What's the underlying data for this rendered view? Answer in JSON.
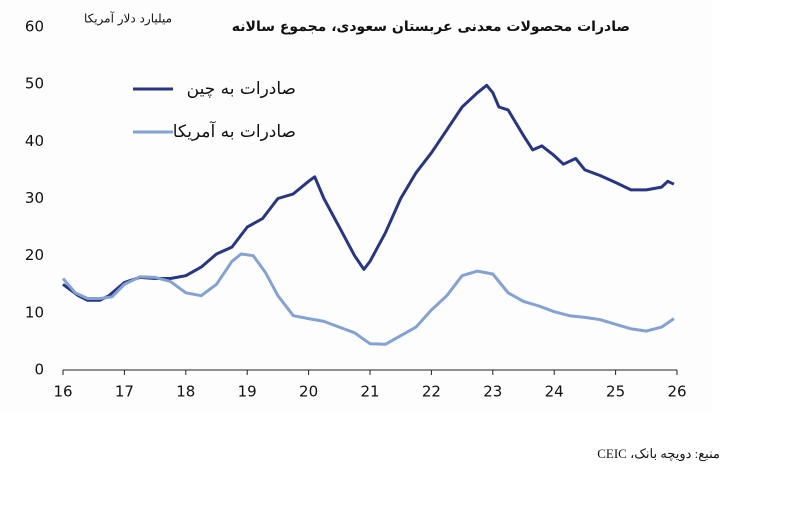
{
  "chart_data": {
    "type": "line",
    "title": "صادرات محصولات معدنی عربستان سعودی، مجموع سالانه",
    "y_label": "میلیارد دلار آمریکا",
    "source": "منبع: دویچه بانک، CEIC",
    "xlim": [
      16,
      26
    ],
    "xticks": [
      16,
      17,
      18,
      19,
      20,
      21,
      22,
      23,
      24,
      25,
      26
    ],
    "ylim": [
      0,
      60
    ],
    "yticks": [
      0,
      10,
      20,
      30,
      40,
      50,
      60
    ],
    "grid": false,
    "series": [
      {
        "name": "صادرات به چین",
        "color": "#263585",
        "x": [
          16.0,
          16.25,
          16.4,
          16.6,
          16.75,
          17.0,
          17.25,
          17.5,
          17.75,
          18.0,
          18.25,
          18.5,
          18.75,
          19.0,
          19.25,
          19.5,
          19.75,
          20.0,
          20.1,
          20.25,
          20.5,
          20.75,
          20.9,
          21.0,
          21.25,
          21.5,
          21.75,
          22.0,
          22.25,
          22.5,
          22.75,
          22.9,
          23.0,
          23.1,
          23.25,
          23.5,
          23.65,
          23.8,
          24.0,
          24.15,
          24.35,
          24.5,
          24.75,
          25.0,
          25.25,
          25.5,
          25.75,
          25.85,
          25.95
        ],
        "values": [
          15,
          13,
          12.2,
          12.2,
          13,
          15.3,
          16.2,
          16,
          16,
          16.5,
          18,
          20.3,
          21.5,
          25,
          26.5,
          30,
          30.8,
          33,
          33.8,
          30,
          25,
          20,
          17.6,
          19,
          24,
          30,
          34.5,
          38,
          42,
          46,
          48.5,
          49.8,
          48.5,
          46,
          45.5,
          41,
          38.5,
          39.2,
          37.5,
          36,
          37,
          35,
          34,
          32.8,
          31.5,
          31.5,
          32,
          33,
          32.5
        ]
      },
      {
        "name": "صادرات به آمریکا",
        "color": "#82a2d6",
        "x": [
          16.0,
          16.2,
          16.4,
          16.6,
          16.8,
          17.0,
          17.25,
          17.5,
          17.75,
          18.0,
          18.25,
          18.5,
          18.75,
          18.9,
          19.1,
          19.3,
          19.5,
          19.75,
          20.0,
          20.25,
          20.5,
          20.75,
          21.0,
          21.25,
          21.5,
          21.75,
          22.0,
          22.25,
          22.5,
          22.75,
          23.0,
          23.25,
          23.5,
          23.75,
          24.0,
          24.25,
          24.5,
          24.75,
          25.0,
          25.25,
          25.5,
          25.75,
          25.95
        ],
        "values": [
          16,
          13.5,
          12.5,
          12.5,
          12.8,
          15,
          16.3,
          16.2,
          15.5,
          13.5,
          13,
          15,
          19,
          20.3,
          20,
          17,
          13,
          9.5,
          9,
          8.5,
          7.5,
          6.5,
          4.6,
          4.5,
          6,
          7.5,
          10.5,
          13,
          16.5,
          17.3,
          16.8,
          13.5,
          12,
          11.2,
          10.2,
          9.5,
          9.2,
          8.8,
          8,
          7.2,
          6.8,
          7.5,
          9
        ]
      }
    ]
  }
}
